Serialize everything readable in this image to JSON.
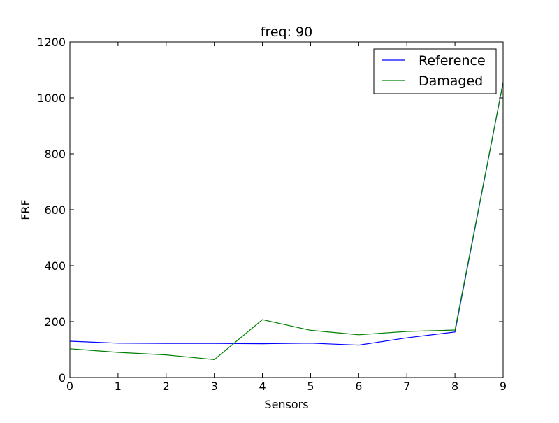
{
  "chart_data": {
    "type": "line",
    "title": "freq: 90",
    "xlabel": "Sensors",
    "ylabel": "FRF",
    "x": [
      0,
      1,
      2,
      3,
      4,
      5,
      6,
      7,
      8,
      9
    ],
    "xlim": [
      0,
      9
    ],
    "ylim": [
      0,
      1200
    ],
    "xticks": [
      "0",
      "1",
      "2",
      "3",
      "4",
      "5",
      "6",
      "7",
      "8",
      "9"
    ],
    "yticks": [
      "0",
      "200",
      "400",
      "600",
      "800",
      "1000",
      "1200"
    ],
    "grid": false,
    "legend_position": "top-right",
    "series": [
      {
        "name": "Reference",
        "color": "#0000ff",
        "values": [
          130,
          123,
          122,
          122,
          121,
          123,
          116,
          142,
          163,
          1055
        ]
      },
      {
        "name": "Damaged",
        "color": "#008000",
        "values": [
          103,
          90,
          81,
          64,
          207,
          169,
          153,
          165,
          170,
          1055
        ]
      }
    ]
  }
}
